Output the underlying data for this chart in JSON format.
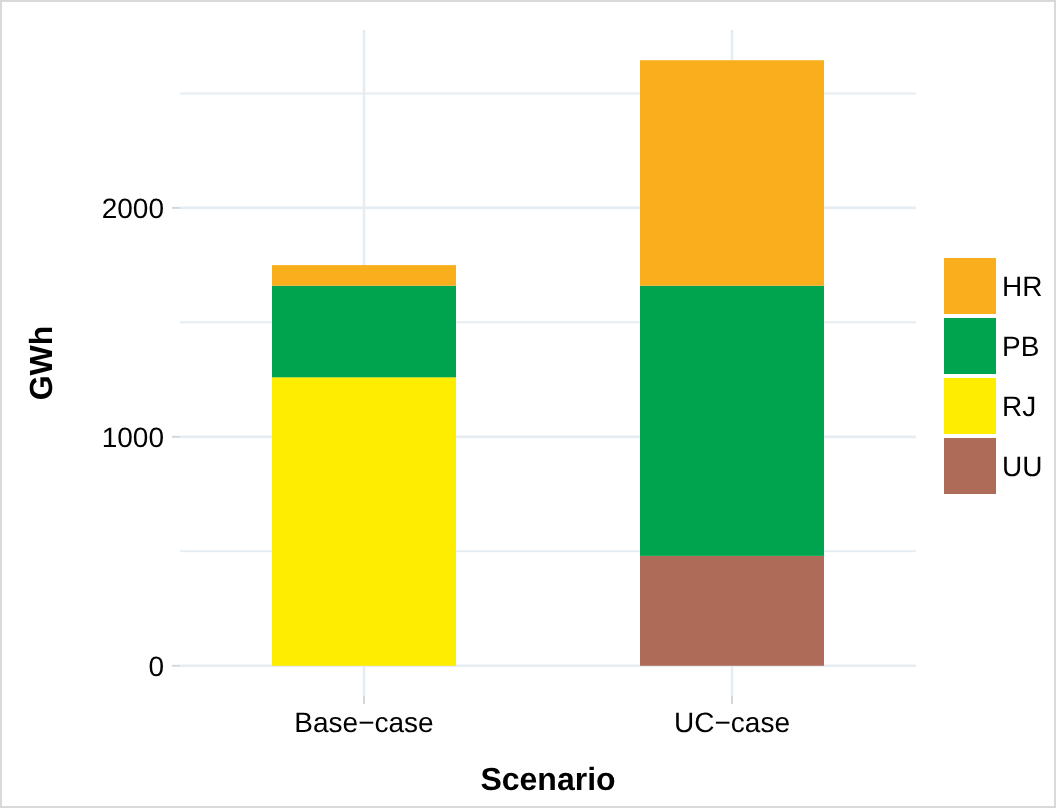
{
  "chart_data": {
    "type": "bar",
    "stacked": true,
    "xlabel": "Scenario",
    "ylabel": "GWh",
    "categories": [
      "Base−case",
      "UC−case"
    ],
    "series": [
      {
        "name": "UU",
        "color": "#ae6b58",
        "values": [
          0,
          480
        ]
      },
      {
        "name": "RJ",
        "color": "#ffed00",
        "values": [
          1260,
          0
        ]
      },
      {
        "name": "PB",
        "color": "#00a44e",
        "values": [
          400,
          1180
        ]
      },
      {
        "name": "HR",
        "color": "#f9ae1b",
        "values": [
          90,
          985
        ]
      }
    ],
    "ylim": [
      -132,
      2777
    ],
    "yticks": [
      0,
      {
        "value": 500,
        "label": null
      },
      1000,
      {
        "value": 1500,
        "label": null
      },
      2000,
      {
        "value": 2500,
        "label": null
      }
    ],
    "grid": true,
    "legend": "right"
  }
}
